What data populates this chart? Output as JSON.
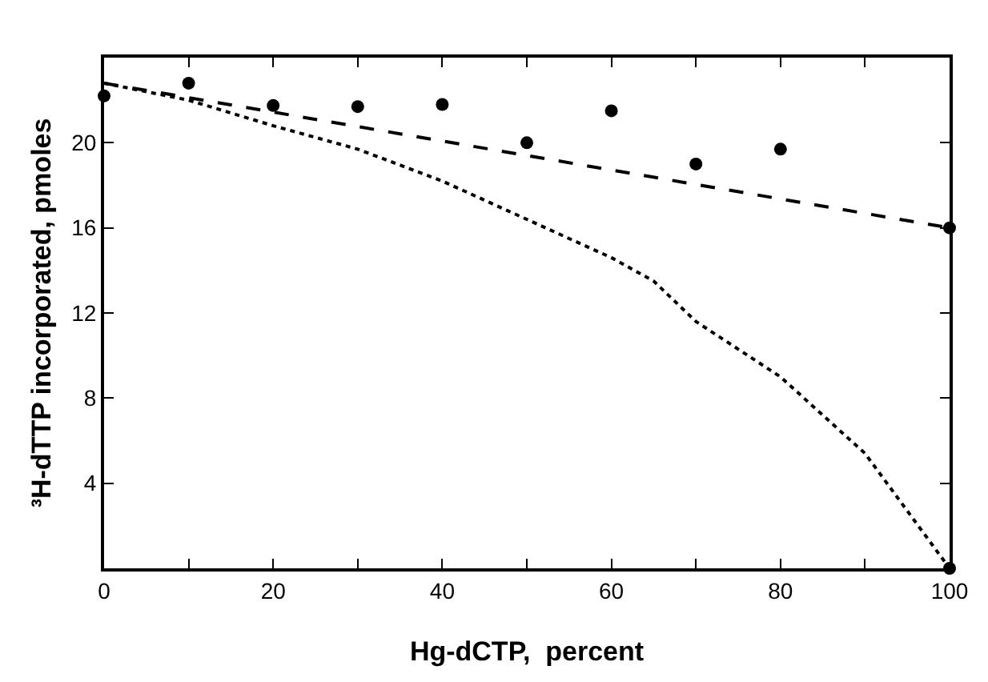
{
  "chart_data": {
    "type": "scatter",
    "xlabel": "Hg-dCTP,  percent",
    "ylabel": "³H-dTTP incorporated, pmoles",
    "xlim": [
      0,
      100
    ],
    "ylim": [
      0,
      24
    ],
    "xticks": [
      0,
      {
        "value": 10,
        "label": null
      },
      20,
      {
        "value": 30,
        "label": null
      },
      40,
      {
        "value": 50,
        "label": null
      },
      60,
      {
        "value": 70,
        "label": null
      },
      80,
      {
        "value": 90,
        "label": null
      },
      100
    ],
    "yticks": [
      4,
      8,
      12,
      16,
      20
    ],
    "series": [
      {
        "marker": "circle",
        "color": "#000000",
        "x": [
          0,
          10,
          20,
          30,
          40,
          50,
          60,
          70,
          80,
          100,
          100
        ],
        "values": [
          22.2,
          22.8,
          21.75,
          21.7,
          21.8,
          20.0,
          21.5,
          19.0,
          19.7,
          16.0,
          0
        ]
      },
      {
        "type": "line",
        "line_style": "dashed",
        "color": "#000000",
        "x": [
          0,
          100
        ],
        "values": [
          22.8,
          16.0
        ]
      },
      {
        "type": "line",
        "line_style": "dotted",
        "color": "#000000",
        "x": [
          0,
          10,
          20,
          30,
          40,
          50,
          60,
          65,
          70,
          80,
          90,
          100
        ],
        "values": [
          22.8,
          22.0,
          20.8,
          19.7,
          18.2,
          16.4,
          14.6,
          13.5,
          11.6,
          9.0,
          5.4,
          0
        ]
      }
    ]
  }
}
